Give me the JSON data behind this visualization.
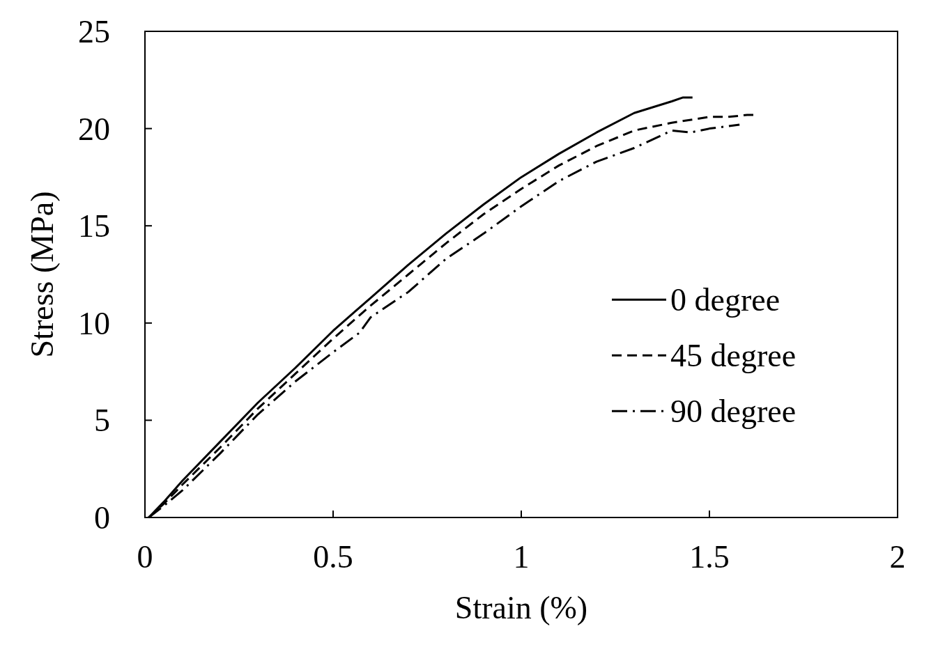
{
  "chart_data": {
    "type": "line",
    "xlabel": "Strain (%)",
    "ylabel": "Stress (MPa)",
    "xlim": [
      0,
      2
    ],
    "ylim": [
      0,
      25
    ],
    "xticks": [
      0,
      0.5,
      1,
      1.5,
      2
    ],
    "yticks": [
      0,
      5,
      10,
      15,
      20,
      25
    ],
    "grid": false,
    "legend": "right",
    "marker": "none",
    "series": [
      {
        "name": "0 degree",
        "color": "#000000",
        "line_style": "solid",
        "x": [
          0.01,
          0.05,
          0.1,
          0.2,
          0.3,
          0.4,
          0.5,
          0.6,
          0.7,
          0.8,
          0.9,
          1.0,
          1.1,
          1.2,
          1.3,
          1.4,
          1.43,
          1.455
        ],
        "values": [
          0,
          0.8,
          1.9,
          3.9,
          5.9,
          7.7,
          9.6,
          11.3,
          13.0,
          14.6,
          16.1,
          17.5,
          18.7,
          19.8,
          20.8,
          21.4,
          21.6,
          21.6
        ]
      },
      {
        "name": "45 degree",
        "color": "#000000",
        "line_style": "dashed",
        "x": [
          0.01,
          0.05,
          0.1,
          0.2,
          0.3,
          0.4,
          0.5,
          0.6,
          0.7,
          0.8,
          0.9,
          1.0,
          1.1,
          1.2,
          1.3,
          1.4,
          1.5,
          1.55,
          1.6,
          1.62
        ],
        "values": [
          0,
          0.7,
          1.7,
          3.6,
          5.6,
          7.4,
          9.2,
          10.9,
          12.5,
          14.1,
          15.6,
          16.9,
          18.1,
          19.1,
          19.9,
          20.3,
          20.6,
          20.6,
          20.7,
          20.7
        ]
      },
      {
        "name": "90 degree",
        "color": "#000000",
        "line_style": "dashdot",
        "x": [
          0.01,
          0.05,
          0.1,
          0.2,
          0.3,
          0.4,
          0.5,
          0.57,
          0.6,
          0.7,
          0.8,
          0.9,
          1.0,
          1.1,
          1.2,
          1.3,
          1.4,
          1.45,
          1.5,
          1.58
        ],
        "values": [
          0,
          0.6,
          1.4,
          3.3,
          5.3,
          7.0,
          8.5,
          9.5,
          10.3,
          11.6,
          13.3,
          14.6,
          16.0,
          17.3,
          18.3,
          19.0,
          19.9,
          19.8,
          20.0,
          20.2
        ]
      }
    ]
  }
}
